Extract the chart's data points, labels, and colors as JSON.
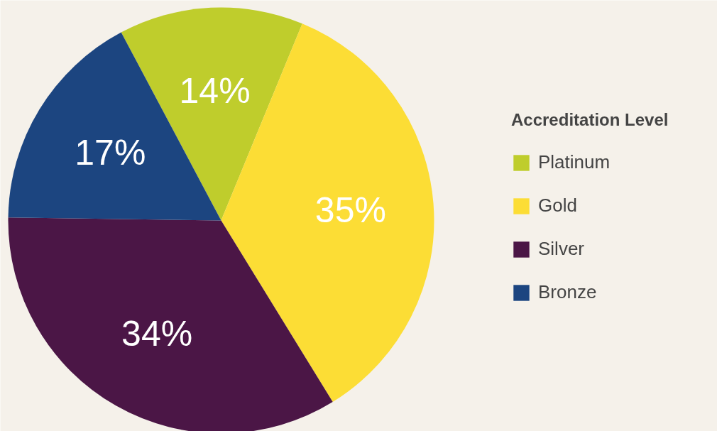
{
  "chart_data": {
    "type": "pie",
    "legend_title": "Accreditation Level",
    "legend": "right",
    "categories": [
      "Platinum",
      "Gold",
      "Silver",
      "Bronze"
    ],
    "values": [
      14,
      35,
      34,
      17
    ],
    "colors": [
      "#bfcd2c",
      "#fcdd35",
      "#4b1646",
      "#1c4580"
    ],
    "value_labels": [
      "14%",
      "35%",
      "34%",
      "17%"
    ]
  }
}
